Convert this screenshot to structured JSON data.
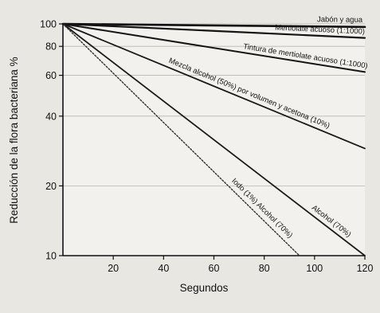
{
  "chart_data": {
    "type": "line",
    "title": "",
    "xlabel": "Segundos",
    "ylabel": "Reducción de la flora bacteriana %",
    "xlim": [
      0,
      120
    ],
    "ylim": [
      10,
      100
    ],
    "yscale": "log",
    "x_ticks": [
      20,
      40,
      60,
      80,
      100,
      120
    ],
    "y_ticks": [
      10,
      20,
      40,
      60,
      80,
      100
    ],
    "grid": true,
    "legend": "labels-on-lines",
    "series": [
      {
        "name": "Jabón y agua",
        "x": [
          0,
          120
        ],
        "y": [
          100,
          97
        ],
        "stroke": "#101010",
        "width": 2.6,
        "dash": ""
      },
      {
        "name": "Mertiolate acuoso (1:1000)",
        "x": [
          0,
          120
        ],
        "y": [
          100,
          87
        ],
        "stroke": "#141414",
        "width": 2.2,
        "dash": ""
      },
      {
        "name": "Tintura de mertiolate acuoso (1:1000)",
        "x": [
          0,
          120
        ],
        "y": [
          100,
          62
        ],
        "stroke": "#151515",
        "width": 2.0,
        "dash": ""
      },
      {
        "name": "Mezcla alcohol (50%) por volumen y acetona (10%)",
        "x": [
          0,
          120
        ],
        "y": [
          100,
          29
        ],
        "stroke": "#1a1a1a",
        "width": 1.8,
        "dash": ""
      },
      {
        "name": "Alcohol (70%)",
        "x": [
          0,
          120
        ],
        "y": [
          100,
          10
        ],
        "stroke": "#1c1c1c",
        "width": 1.8,
        "dash": ""
      },
      {
        "name": "Iodo (1%) Alcohol (70%)",
        "x": [
          0,
          94
        ],
        "y": [
          100,
          10
        ],
        "stroke": "#333333",
        "width": 1.4,
        "dash": "2,2"
      }
    ]
  }
}
